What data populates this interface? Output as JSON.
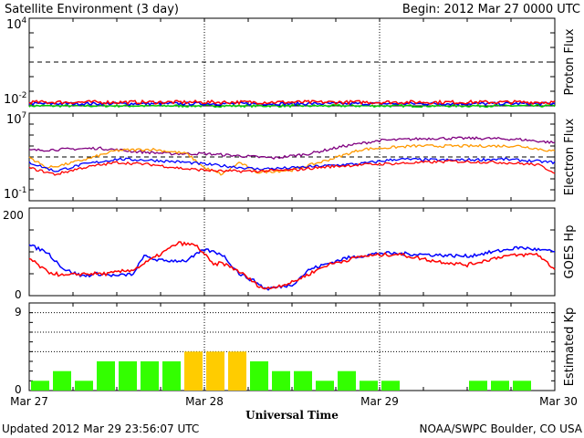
{
  "header": {
    "title": "Satellite Environment (3 day)",
    "begin": "Begin:  2012 Mar 27 0000 UTC"
  },
  "footer": {
    "updated": "Updated 2012 Mar 29 23:56:07 UTC",
    "credit": "NOAA/SWPC Boulder, CO USA",
    "xlabel": "Universal Time"
  },
  "chart_data": [
    {
      "type": "line",
      "ylabel": "Proton Flux",
      "scale": "log",
      "ylim_exp": [
        -2,
        4
      ],
      "ytick_exps": [
        -2,
        4
      ],
      "threshold_exp": 1,
      "x_days": [
        0,
        3
      ],
      "xtick_labels": [
        "Mar 27",
        "Mar 28",
        "Mar 29",
        "Mar 30"
      ],
      "series": [
        {
          "color": "#ff0000",
          "level_exp": -1.75,
          "noise": 0.12
        },
        {
          "color": "#0000ff",
          "level_exp": -1.85,
          "noise": 0.1
        },
        {
          "color": "#00cc00",
          "level_exp": -2.0,
          "noise": 0.08
        }
      ]
    },
    {
      "type": "line",
      "ylabel": "Electron Flux",
      "scale": "log",
      "ylim_exp": [
        -1,
        7
      ],
      "ytick_exps": [
        -1,
        7
      ],
      "threshold_exp": 3,
      "series": [
        {
          "color": "#800080",
          "points": [
            [
              0,
              3.6
            ],
            [
              0.2,
              3.7
            ],
            [
              0.4,
              3.8
            ],
            [
              0.6,
              3.5
            ],
            [
              0.8,
              3.3
            ],
            [
              1.0,
              3.3
            ],
            [
              1.2,
              3.1
            ],
            [
              1.4,
              2.9
            ],
            [
              1.6,
              3.3
            ],
            [
              1.8,
              4.0
            ],
            [
              2.0,
              4.5
            ],
            [
              2.3,
              4.7
            ],
            [
              2.6,
              4.7
            ],
            [
              2.8,
              4.6
            ],
            [
              3.0,
              4.3
            ]
          ]
        },
        {
          "color": "#ff9900",
          "points": [
            [
              0,
              3.0
            ],
            [
              0.1,
              2.0
            ],
            [
              0.2,
              2.3
            ],
            [
              0.35,
              2.9
            ],
            [
              0.5,
              3.6
            ],
            [
              0.7,
              3.7
            ],
            [
              0.9,
              3.3
            ],
            [
              1.0,
              2.0
            ],
            [
              1.1,
              1.4
            ],
            [
              1.2,
              2.5
            ],
            [
              1.3,
              1.6
            ],
            [
              1.5,
              1.8
            ],
            [
              1.7,
              2.7
            ],
            [
              1.9,
              3.7
            ],
            [
              2.2,
              4.0
            ],
            [
              2.5,
              4.0
            ],
            [
              2.8,
              4.0
            ],
            [
              3.0,
              3.5
            ]
          ]
        },
        {
          "color": "#0000ff",
          "points": [
            [
              0,
              2.5
            ],
            [
              0.15,
              1.7
            ],
            [
              0.3,
              2.3
            ],
            [
              0.5,
              2.8
            ],
            [
              0.7,
              2.7
            ],
            [
              0.9,
              2.5
            ],
            [
              1.1,
              2.2
            ],
            [
              1.3,
              1.9
            ],
            [
              1.5,
              2.0
            ],
            [
              1.7,
              2.2
            ],
            [
              1.9,
              2.4
            ],
            [
              2.1,
              2.8
            ],
            [
              2.4,
              2.7
            ],
            [
              2.7,
              2.8
            ],
            [
              3.0,
              2.5
            ]
          ]
        },
        {
          "color": "#ff0000",
          "points": [
            [
              0,
              2.0
            ],
            [
              0.15,
              1.4
            ],
            [
              0.3,
              2.0
            ],
            [
              0.5,
              2.5
            ],
            [
              0.7,
              2.3
            ],
            [
              0.9,
              1.9
            ],
            [
              1.1,
              1.7
            ],
            [
              1.3,
              1.7
            ],
            [
              1.5,
              1.8
            ],
            [
              1.7,
              2.1
            ],
            [
              1.9,
              2.3
            ],
            [
              2.1,
              2.4
            ],
            [
              2.4,
              2.6
            ],
            [
              2.7,
              2.5
            ],
            [
              2.9,
              2.3
            ],
            [
              3.0,
              1.6
            ]
          ]
        }
      ]
    },
    {
      "type": "line",
      "ylabel": "GOES Hp",
      "ylim": [
        0,
        200
      ],
      "yticks": [
        0,
        200
      ],
      "series": [
        {
          "color": "#0000ff",
          "points": [
            [
              0,
              115
            ],
            [
              0.1,
              100
            ],
            [
              0.2,
              60
            ],
            [
              0.3,
              45
            ],
            [
              0.4,
              50
            ],
            [
              0.5,
              45
            ],
            [
              0.6,
              50
            ],
            [
              0.65,
              90
            ],
            [
              0.75,
              80
            ],
            [
              0.9,
              80
            ],
            [
              1.0,
              105
            ],
            [
              1.1,
              95
            ],
            [
              1.2,
              50
            ],
            [
              1.3,
              30
            ],
            [
              1.35,
              15
            ],
            [
              1.5,
              25
            ],
            [
              1.6,
              60
            ],
            [
              1.8,
              85
            ],
            [
              2.0,
              97
            ],
            [
              2.2,
              95
            ],
            [
              2.5,
              90
            ],
            [
              2.8,
              110
            ],
            [
              3.0,
              100
            ]
          ]
        },
        {
          "color": "#ff0000",
          "points": [
            [
              0,
              85
            ],
            [
              0.1,
              55
            ],
            [
              0.2,
              45
            ],
            [
              0.3,
              50
            ],
            [
              0.45,
              50
            ],
            [
              0.6,
              60
            ],
            [
              0.75,
              95
            ],
            [
              0.85,
              120
            ],
            [
              0.95,
              115
            ],
            [
              1.0,
              95
            ],
            [
              1.05,
              70
            ],
            [
              1.1,
              75
            ],
            [
              1.2,
              55
            ],
            [
              1.3,
              25
            ],
            [
              1.35,
              15
            ],
            [
              1.5,
              30
            ],
            [
              1.7,
              70
            ],
            [
              1.9,
              90
            ],
            [
              2.1,
              95
            ],
            [
              2.3,
              80
            ],
            [
              2.5,
              70
            ],
            [
              2.7,
              90
            ],
            [
              2.9,
              95
            ],
            [
              3.0,
              60
            ]
          ]
        }
      ]
    },
    {
      "type": "bar",
      "ylabel": "Estimated Kp",
      "ylim": [
        0,
        9
      ],
      "yticks": [
        0,
        9
      ],
      "grid_levels": [
        4,
        6,
        8
      ],
      "bar_hours": 3,
      "values": [
        1,
        2,
        1,
        3,
        3,
        3,
        3,
        4,
        4,
        4,
        3,
        2,
        2,
        1,
        2,
        1,
        1,
        0,
        0,
        0,
        1,
        1,
        1,
        0
      ],
      "colors": {
        "quiet": "#33ff00",
        "active": "#ffcc00"
      }
    }
  ]
}
